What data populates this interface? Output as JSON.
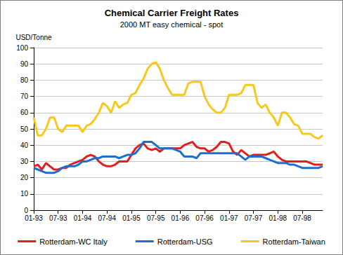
{
  "chart_data": {
    "type": "line",
    "title": "Chemical Carrier Freight Rates",
    "subtitle": "2000 MT easy chemical - spot",
    "y_label": "USD/Tonne",
    "categories": [
      "01-93",
      null,
      null,
      null,
      null,
      null,
      "07-93",
      null,
      null,
      null,
      null,
      null,
      "01-94",
      null,
      null,
      null,
      null,
      null,
      "07-94",
      null,
      null,
      null,
      null,
      null,
      "01-95",
      null,
      null,
      null,
      null,
      null,
      "07-95",
      null,
      null,
      null,
      null,
      null,
      "01-96",
      null,
      null,
      null,
      null,
      null,
      "07-96",
      null,
      null,
      null,
      null,
      null,
      "01-97",
      null,
      null,
      null,
      null,
      null,
      "07-97",
      null,
      null,
      null,
      null,
      null,
      "01-98",
      null,
      null,
      null,
      null,
      null,
      "07-98",
      null,
      null,
      null,
      null,
      null
    ],
    "series": [
      {
        "name": "Rotterdam-WC Italy",
        "color": "#e41e1e",
        "values": [
          27,
          28,
          25,
          29,
          27,
          25,
          25,
          26,
          26,
          28,
          29,
          30,
          31,
          33,
          34,
          33,
          30,
          28,
          27,
          27,
          28,
          30,
          30,
          30,
          34,
          38,
          40,
          41,
          38,
          37,
          38,
          36,
          38,
          38,
          38,
          38,
          38,
          40,
          41,
          42,
          39,
          38,
          38,
          36,
          37,
          39,
          42,
          42,
          41,
          36,
          34,
          37,
          35,
          33,
          34,
          34,
          34,
          34,
          35,
          36,
          33,
          31,
          30,
          30,
          30,
          30,
          30,
          30,
          29,
          28,
          28,
          28
        ]
      },
      {
        "name": "Rotterdam-USG",
        "color": "#1e6ed2",
        "values": [
          26,
          25,
          24,
          23,
          23,
          23,
          24,
          26,
          27,
          27,
          27,
          28,
          30,
          30,
          31,
          32,
          32,
          33,
          33,
          33,
          33,
          32,
          33,
          34,
          34,
          35,
          38,
          42,
          42,
          42,
          40,
          38,
          38,
          38,
          38,
          37,
          36,
          33,
          33,
          33,
          32,
          35,
          35,
          35,
          35,
          35,
          35,
          35,
          35,
          35,
          35,
          33,
          31,
          33,
          33,
          33,
          33,
          32,
          31,
          30,
          29,
          29,
          29,
          28,
          28,
          27,
          26,
          26,
          26,
          26,
          26,
          27
        ]
      },
      {
        "name": "Rotterdam-Taiwan",
        "color": "#f7c81e",
        "values": [
          57,
          46,
          46,
          50,
          57,
          57,
          50,
          48,
          52,
          52,
          52,
          52,
          48,
          52,
          53,
          56,
          60,
          66,
          64,
          60,
          67,
          63,
          65,
          66,
          71,
          72,
          77,
          81,
          87,
          90,
          91,
          87,
          80,
          75,
          71,
          71,
          71,
          71,
          78,
          79,
          79,
          79,
          70,
          65,
          62,
          60,
          60,
          63,
          71,
          71,
          71,
          72,
          77,
          77,
          77,
          66,
          63,
          65,
          60,
          57,
          52,
          60,
          60,
          57,
          53,
          52,
          47,
          47,
          47,
          45,
          44,
          46
        ]
      }
    ],
    "ylim": [
      0,
      100
    ],
    "yticks": [
      0,
      10,
      20,
      30,
      40,
      50,
      60,
      70,
      80,
      90,
      100
    ],
    "grid": true,
    "legend": "bottom"
  }
}
